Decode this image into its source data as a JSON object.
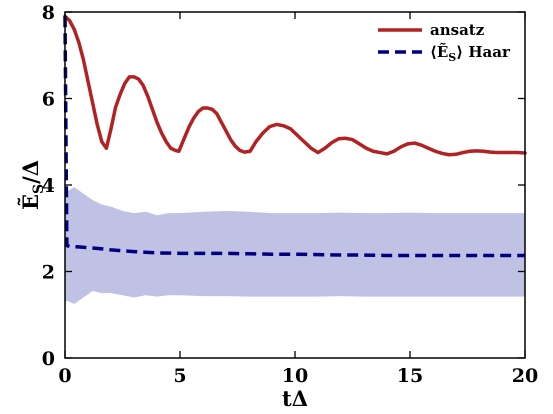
{
  "chart_data": {
    "type": "line",
    "title": "",
    "xlabel": "tΔ",
    "ylabel": "Ẽ_S/Δ",
    "xlim": [
      0,
      20
    ],
    "ylim": [
      0,
      8
    ],
    "xticks": [
      0,
      5,
      10,
      15,
      20
    ],
    "yticks": [
      0,
      2,
      4,
      6,
      8
    ],
    "grid": false,
    "legend_position": "top-right",
    "series": [
      {
        "name": "ansatz",
        "style": "solid",
        "color": "#b22222",
        "x": [
          0,
          0.2,
          0.4,
          0.6,
          0.8,
          1.0,
          1.2,
          1.4,
          1.6,
          1.8,
          2.0,
          2.2,
          2.4,
          2.6,
          2.8,
          3.0,
          3.2,
          3.4,
          3.6,
          3.8,
          4.0,
          4.2,
          4.4,
          4.6,
          4.8,
          4.95,
          5.2,
          5.4,
          5.6,
          5.8,
          6.0,
          6.2,
          6.4,
          6.6,
          6.8,
          7.0,
          7.2,
          7.4,
          7.6,
          7.8,
          8.05,
          8.3,
          8.6,
          8.9,
          9.2,
          9.5,
          9.8,
          10.1,
          10.4,
          10.7,
          11.0,
          11.3,
          11.6,
          11.9,
          12.2,
          12.5,
          12.8,
          13.1,
          13.4,
          13.7,
          14.0,
          14.3,
          14.6,
          14.9,
          15.2,
          15.5,
          15.8,
          16.1,
          16.4,
          16.7,
          17.0,
          17.3,
          17.6,
          17.9,
          18.2,
          18.5,
          18.8,
          19.1,
          19.4,
          19.7,
          20.0
        ],
        "y": [
          7.9,
          7.8,
          7.6,
          7.3,
          6.9,
          6.4,
          5.9,
          5.4,
          5.0,
          4.85,
          5.3,
          5.8,
          6.1,
          6.35,
          6.5,
          6.5,
          6.45,
          6.3,
          6.05,
          5.75,
          5.45,
          5.2,
          5.0,
          4.85,
          4.8,
          4.78,
          5.1,
          5.35,
          5.55,
          5.7,
          5.78,
          5.78,
          5.75,
          5.65,
          5.45,
          5.25,
          5.05,
          4.9,
          4.8,
          4.76,
          4.78,
          5.0,
          5.2,
          5.35,
          5.4,
          5.37,
          5.3,
          5.15,
          5.0,
          4.85,
          4.75,
          4.85,
          4.98,
          5.07,
          5.08,
          5.05,
          4.95,
          4.85,
          4.78,
          4.75,
          4.72,
          4.78,
          4.88,
          4.95,
          4.97,
          4.92,
          4.85,
          4.78,
          4.73,
          4.7,
          4.71,
          4.75,
          4.78,
          4.79,
          4.78,
          4.76,
          4.75,
          4.75,
          4.75,
          4.75,
          4.74
        ]
      },
      {
        "name": "⟨Ẽ_S⟩ Haar",
        "style": "dashed",
        "color": "#000080",
        "x": [
          0,
          0.04,
          0.08,
          0.2,
          0.6,
          1.0,
          1.5,
          2.0,
          3.0,
          4.0,
          5.0,
          6.0,
          7.0,
          8.0,
          9.0,
          10.0,
          11.0,
          12.0,
          13.0,
          14.0,
          15.0,
          16.0,
          17.0,
          18.0,
          19.0,
          20.0
        ],
        "y": [
          7.9,
          5.2,
          2.6,
          2.58,
          2.57,
          2.55,
          2.53,
          2.5,
          2.46,
          2.43,
          2.42,
          2.42,
          2.42,
          2.41,
          2.4,
          2.4,
          2.39,
          2.38,
          2.38,
          2.37,
          2.37,
          2.37,
          2.37,
          2.37,
          2.37,
          2.37
        ]
      }
    ],
    "band": {
      "color": "#8a8fd0",
      "x": [
        0,
        0.1,
        0.4,
        0.8,
        1.2,
        1.6,
        2.0,
        2.5,
        3.0,
        3.5,
        4.0,
        4.5,
        5.0,
        6.0,
        7.0,
        8.0,
        9.0,
        10.0,
        11.0,
        12.0,
        13.0,
        14.0,
        15.0,
        16.0,
        17.0,
        18.0,
        19.0,
        20.0
      ],
      "upper": [
        3.9,
        3.85,
        3.95,
        3.8,
        3.65,
        3.55,
        3.5,
        3.4,
        3.35,
        3.38,
        3.3,
        3.35,
        3.35,
        3.38,
        3.4,
        3.38,
        3.35,
        3.35,
        3.35,
        3.36,
        3.35,
        3.35,
        3.36,
        3.35,
        3.35,
        3.35,
        3.35,
        3.35
      ],
      "lower": [
        1.3,
        1.32,
        1.25,
        1.4,
        1.55,
        1.5,
        1.5,
        1.45,
        1.4,
        1.45,
        1.42,
        1.45,
        1.45,
        1.43,
        1.43,
        1.42,
        1.42,
        1.42,
        1.42,
        1.43,
        1.42,
        1.42,
        1.42,
        1.42,
        1.42,
        1.42,
        1.42,
        1.42
      ]
    }
  }
}
